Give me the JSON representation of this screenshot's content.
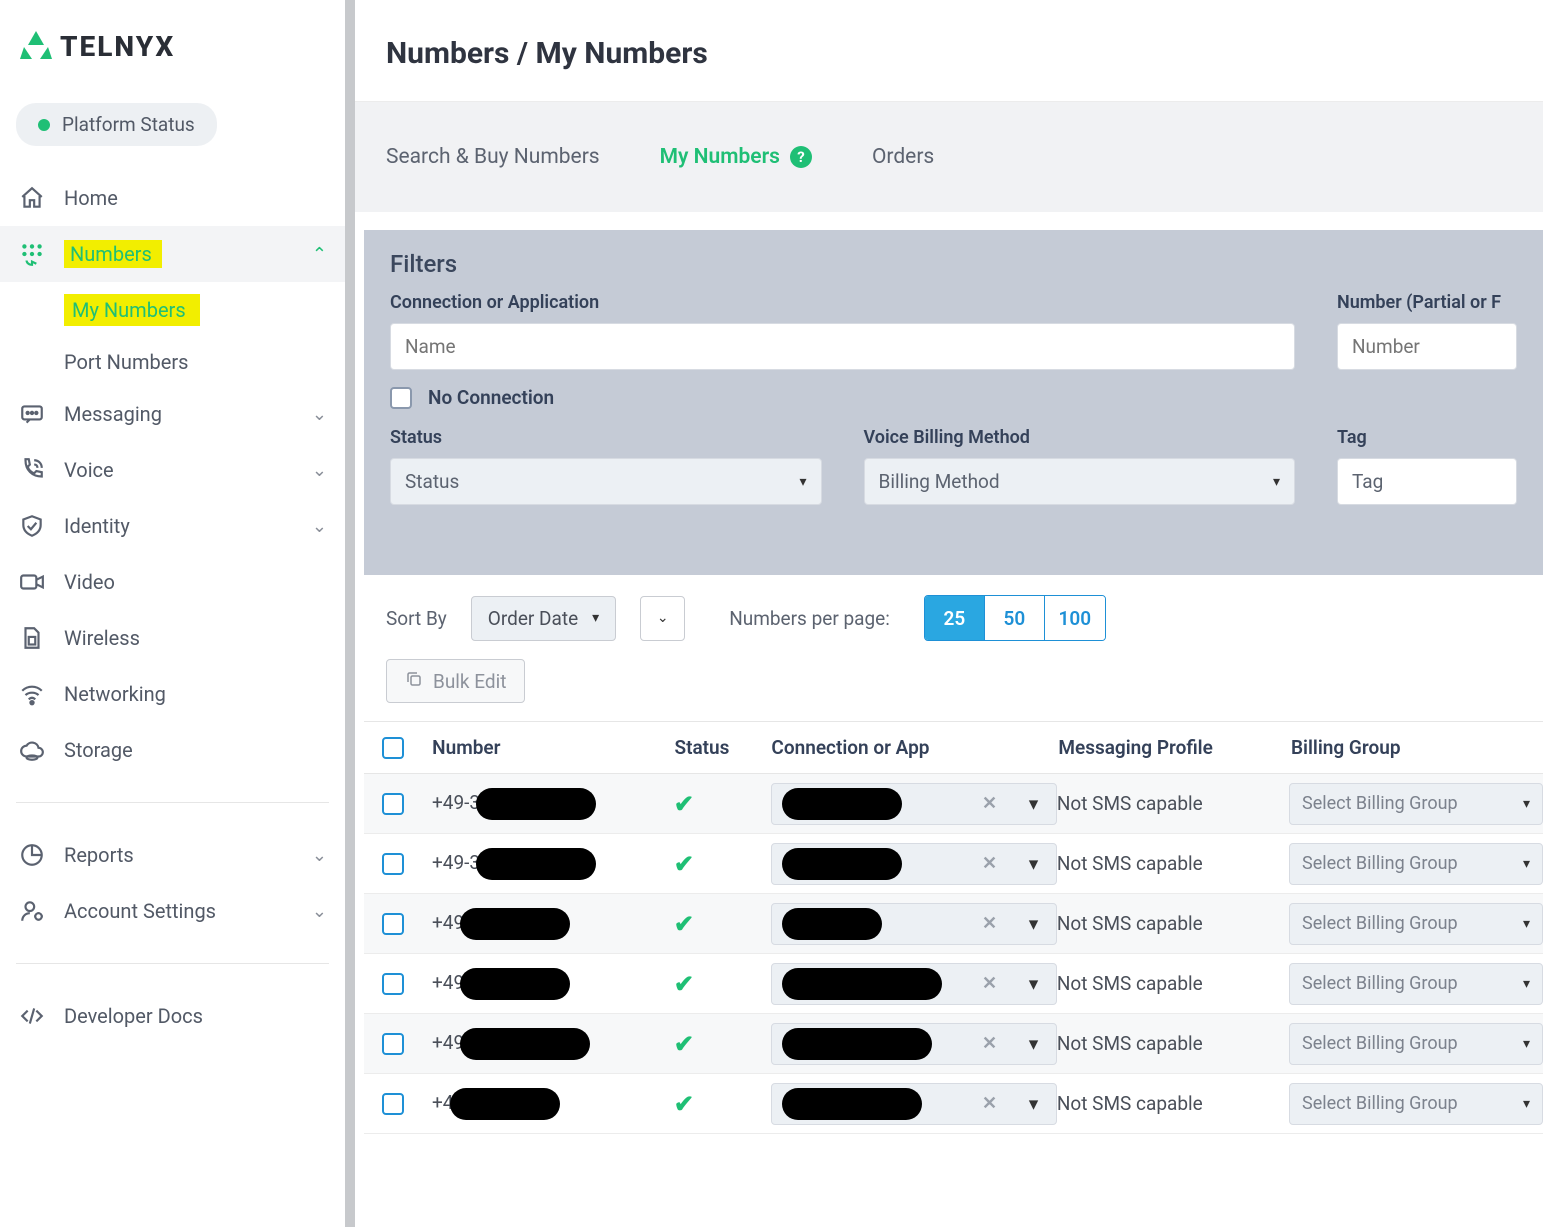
{
  "brand": {
    "name": "TELNYX",
    "accent": "#1fbf75"
  },
  "platform_status": {
    "label": "Platform Status",
    "dot_color": "#1fbf75"
  },
  "sidebar": {
    "home": "Home",
    "numbers": "Numbers",
    "numbers_sub": {
      "my_numbers": "My Numbers",
      "port_numbers": "Port Numbers"
    },
    "messaging": "Messaging",
    "voice": "Voice",
    "identity": "Identity",
    "video": "Video",
    "wireless": "Wireless",
    "networking": "Networking",
    "storage": "Storage",
    "reports": "Reports",
    "account_settings": "Account Settings",
    "developer_docs": "Developer Docs"
  },
  "breadcrumb": "Numbers / My Numbers",
  "tabs": {
    "search_buy": "Search & Buy Numbers",
    "my_numbers": "My Numbers",
    "orders": "Orders"
  },
  "filters": {
    "title": "Filters",
    "connection_label": "Connection or Application",
    "connection_placeholder": "Name",
    "number_label": "Number (Partial or F",
    "number_placeholder": "Number",
    "no_connection": "No Connection",
    "status_label": "Status",
    "status_placeholder": "Status",
    "voice_billing_label": "Voice Billing Method",
    "voice_billing_placeholder": "Billing Method",
    "tag_label": "Tag",
    "tag_placeholder": "Tag"
  },
  "controls": {
    "sort_by": "Sort By",
    "sort_value": "Order Date",
    "per_page_label": "Numbers per page:",
    "per_page_options": [
      "25",
      "50",
      "100"
    ],
    "per_page_active": "25",
    "bulk_edit": "Bulk Edit"
  },
  "table": {
    "columns": {
      "number": "Number",
      "status": "Status",
      "conn": "Connection or App",
      "msg": "Messaging Profile",
      "bill": "Billing Group"
    },
    "billing_placeholder": "Select Billing Group",
    "rows": [
      {
        "prefix": "+49-3",
        "msg": "Not SMS capable"
      },
      {
        "prefix": "+49-3",
        "msg": "Not SMS capable"
      },
      {
        "prefix": "+49",
        "msg": "Not SMS capable"
      },
      {
        "prefix": "+49",
        "msg": "Not SMS capable"
      },
      {
        "prefix": "+49",
        "msg": "Not SMS capable"
      },
      {
        "prefix": "+4",
        "msg": "Not SMS capable"
      }
    ]
  }
}
